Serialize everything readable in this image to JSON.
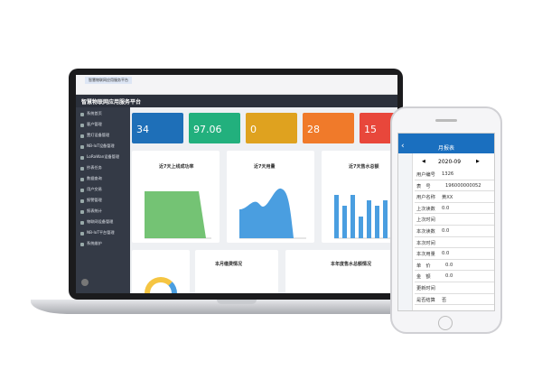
{
  "browser": {
    "tab": "智慧物联网应用服务平台"
  },
  "app": {
    "title": "智慧物联网应用服务平台",
    "menu": [
      "系统首页",
      "客户管理",
      "置灯设备管理",
      "NB-IoT设备管理",
      "LoRaWan设备管理",
      "抄表任务",
      "数据查询",
      "用户交易",
      "报警管理",
      "报表统计",
      "物联网设备管理",
      "NB-IoT平台管理",
      "系统维护"
    ]
  },
  "cards": [
    {
      "value": "34",
      "color": "#1e6fb8"
    },
    {
      "value": "97.06",
      "color": "#22b07d"
    },
    {
      "value": "0",
      "color": "#dfa21f"
    },
    {
      "value": "28",
      "color": "#f07a2a"
    },
    {
      "value": "15",
      "color": "#e8473b"
    }
  ],
  "charts": [
    {
      "title": "近7天上线成功率"
    },
    {
      "title": "近7天用量"
    },
    {
      "title": "近7天售水总额"
    }
  ],
  "bottom": [
    {
      "title": "本月缴费情况"
    },
    {
      "title": "本年度售水总额情况"
    }
  ],
  "phone": {
    "title": "月报表",
    "month": "2020-09",
    "rows": [
      {
        "label": "用户编号",
        "value": "1326"
      },
      {
        "label": "表　号",
        "value": "196000000052"
      },
      {
        "label": "用户名称",
        "value": "黄XX"
      },
      {
        "label": "上次读数",
        "value": "0.0"
      },
      {
        "label": "上次时间"
      },
      {
        "label": "本次读数",
        "value": "0.0"
      },
      {
        "label": "本次时间"
      },
      {
        "label": "本次用量",
        "value": "0.0"
      },
      {
        "label": "单　价",
        "value": "0.0"
      },
      {
        "label": "金　额",
        "value": "0.0"
      },
      {
        "label": "更新时间"
      },
      {
        "label": "是否结算",
        "value": "否"
      }
    ]
  }
}
